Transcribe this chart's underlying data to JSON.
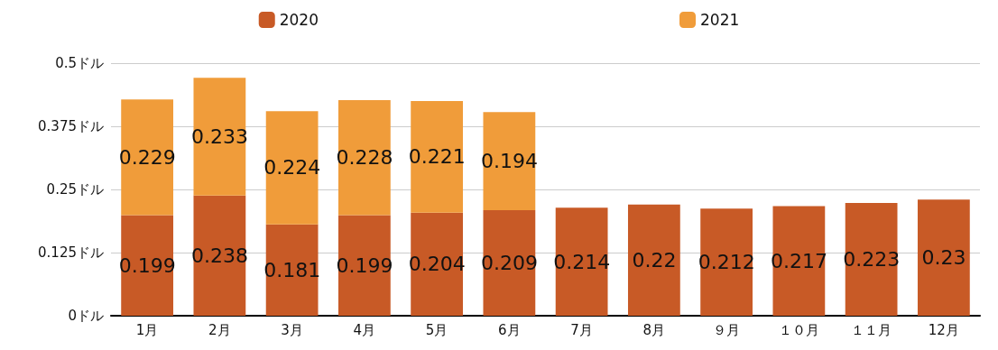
{
  "chart_data": {
    "type": "bar",
    "stacked": true,
    "categories": [
      "1月",
      "2月",
      "3月",
      "4月",
      "5月",
      "6月",
      "7月",
      "8月",
      "９月",
      "１０月",
      "１１月",
      "12月"
    ],
    "series": [
      {
        "name": "2020",
        "color": "#c85a26",
        "values": [
          0.199,
          0.238,
          0.181,
          0.199,
          0.204,
          0.209,
          0.214,
          0.22,
          0.212,
          0.217,
          0.223,
          0.23
        ]
      },
      {
        "name": "2021",
        "color": "#f09c3a",
        "values": [
          0.229,
          0.233,
          0.224,
          0.228,
          0.221,
          0.194,
          null,
          null,
          null,
          null,
          null,
          null
        ]
      }
    ],
    "ylim": [
      0,
      0.5
    ],
    "yticks": [
      {
        "value": 0,
        "label": "0ドル"
      },
      {
        "value": 0.125,
        "label": "0.125ドル"
      },
      {
        "value": 0.25,
        "label": "0.25ドル"
      },
      {
        "value": 0.375,
        "label": "0.375ドル"
      },
      {
        "value": 0.5,
        "label": "0.5ドル"
      }
    ],
    "grid": "y",
    "legend": "top",
    "data_labels": true
  }
}
